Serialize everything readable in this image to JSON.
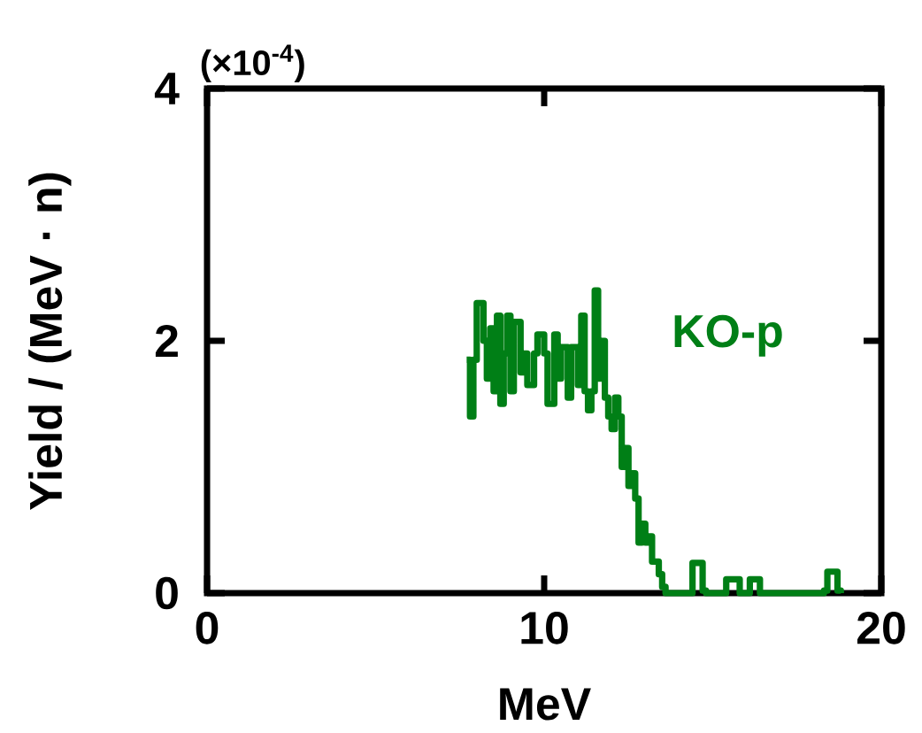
{
  "chart_data": {
    "type": "step",
    "xlabel": "MeV",
    "ylabel": "Yield / (MeV · n)",
    "annotations": [
      "(×10$^{-4}$)"
    ],
    "xlim": [
      0,
      20
    ],
    "ylim": [
      0,
      4
    ],
    "xticks": [
      0,
      10,
      20
    ],
    "yticks": [
      0,
      2,
      4
    ],
    "grid": false,
    "series": [
      {
        "name": "KO-p",
        "color": "#007f16",
        "x": [
          7.7,
          7.8,
          7.9,
          8.0,
          8.2,
          8.3,
          8.4,
          8.5,
          8.6,
          8.7,
          8.8,
          8.9,
          9.0,
          9.1,
          9.3,
          9.4,
          9.5,
          9.7,
          9.8,
          10.0,
          10.1,
          10.3,
          10.4,
          10.5,
          10.7,
          10.8,
          11.0,
          11.1,
          11.2,
          11.3,
          11.4,
          11.5,
          11.6,
          11.7,
          11.8,
          11.9,
          12.0,
          12.1,
          12.2,
          12.3,
          12.4,
          12.5,
          12.6,
          12.7,
          12.8,
          12.9,
          13.0,
          13.1,
          13.2,
          13.4,
          13.5,
          13.6,
          14.4,
          14.7,
          14.8,
          15.4,
          15.8,
          16.1,
          16.4,
          18.3,
          18.4,
          18.7,
          18.8
        ],
        "values": [
          1.85,
          1.4,
          1.85,
          2.3,
          2.0,
          1.7,
          2.1,
          1.6,
          2.2,
          1.5,
          1.9,
          2.2,
          1.6,
          2.15,
          1.75,
          1.9,
          1.65,
          1.9,
          2.05,
          1.9,
          1.5,
          2.05,
          1.7,
          1.95,
          1.55,
          1.95,
          1.65,
          2.2,
          1.6,
          1.45,
          1.6,
          2.4,
          1.7,
          2.0,
          1.55,
          1.4,
          1.3,
          1.55,
          1.4,
          1.0,
          1.15,
          0.85,
          0.95,
          0.75,
          0.4,
          0.55,
          0.4,
          0.45,
          0.25,
          0.15,
          0.05,
          0.0,
          0.24,
          0.02,
          0.0,
          0.11,
          0.0,
          0.11,
          0.0,
          0.02,
          0.17,
          0.02,
          0.0
        ]
      }
    ]
  }
}
